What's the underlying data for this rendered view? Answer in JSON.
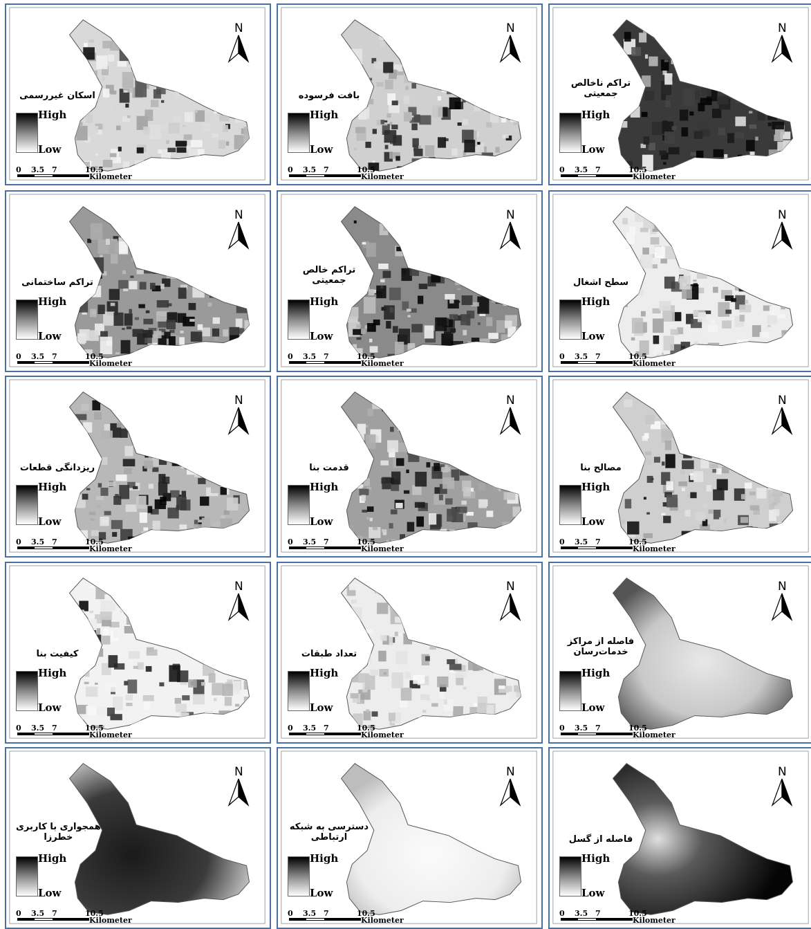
{
  "legend": {
    "high": "High",
    "low": "Low"
  },
  "scale": {
    "ticks": [
      "0",
      "3.5",
      "7",
      "10.5"
    ],
    "unit": "Kilometer"
  },
  "north_label": "N",
  "panels": [
    {
      "title": "اسکان غیررسمی",
      "style": "spots"
    },
    {
      "title": "بافت فرسوده",
      "style": "center-dark"
    },
    {
      "title": "تراکم ناخالص\nجمعیتی",
      "style": "zones-dark"
    },
    {
      "title": "تراکم ساختمانی",
      "style": "south-dark"
    },
    {
      "title": "تراکم خالص\nجمعیتی",
      "style": "north-dark"
    },
    {
      "title": "سطح اشغال",
      "style": "sparse"
    },
    {
      "title": "ریزدانگی قطعات",
      "style": "mixed"
    },
    {
      "title": "قدمت بنا",
      "style": "mixed-dark"
    },
    {
      "title": "مصالح بنا",
      "style": "mixed-light"
    },
    {
      "title": "کیفیت بنا",
      "style": "mixed-white"
    },
    {
      "title": "تعداد طبقات",
      "style": "sparse"
    },
    {
      "title": "فاصله از مراکز\nخدمات‌رسان",
      "style": "smooth-gray"
    },
    {
      "title": "همجواری با کاربری\nخطرزا",
      "style": "smooth-dark"
    },
    {
      "title": "دسترسی به شبکه\nارتباطی",
      "style": "smooth-light"
    },
    {
      "title": "فاصله از گسل",
      "style": "smooth-black"
    }
  ]
}
